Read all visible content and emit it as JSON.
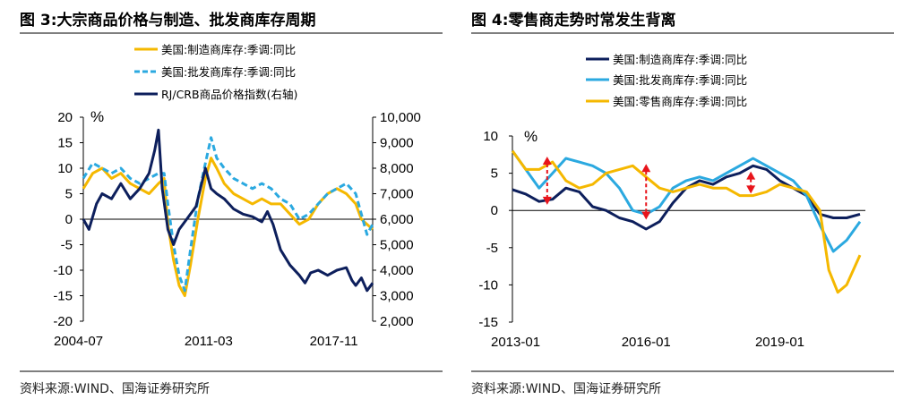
{
  "left": {
    "title": "图 3:大宗商品价格与制造、批发商库存周期",
    "source": "资料来源:WIND、国海证券研究所",
    "chart_data": {
      "type": "line",
      "unit_label": "%",
      "ylim": [
        -20,
        20
      ],
      "yticks": [
        "20",
        "15",
        "10",
        "5",
        "0",
        "-5",
        "-10",
        "-15",
        "-20"
      ],
      "y2lim": [
        2000,
        10000
      ],
      "y2ticks": [
        "10,000",
        "9,000",
        "8,000",
        "7,000",
        "6,000",
        "5,000",
        "4,000",
        "3,000",
        "2,000"
      ],
      "xlim": [
        2004.5,
        2019.9
      ],
      "xticks": [
        {
          "x": 2004.5,
          "label": "2004-07"
        },
        {
          "x": 2011.17,
          "label": "2011-03"
        },
        {
          "x": 2017.83,
          "label": "2017-11"
        }
      ],
      "legend_position": "top-left",
      "series": [
        {
          "name": "美国:制造商库存:季调:同比",
          "color": "#F5B800",
          "dash": false,
          "axis": "left",
          "x": [
            2004.5,
            2005.0,
            2005.5,
            2006.0,
            2006.5,
            2007.0,
            2007.5,
            2008.0,
            2008.5,
            2008.8,
            2009.0,
            2009.3,
            2009.6,
            2009.9,
            2010.2,
            2010.6,
            2011.0,
            2011.3,
            2011.6,
            2012.0,
            2012.5,
            2013.0,
            2013.5,
            2014.0,
            2014.5,
            2015.0,
            2015.5,
            2016.0,
            2016.5,
            2017.0,
            2017.5,
            2018.0,
            2018.5,
            2019.0,
            2019.3,
            2019.6,
            2019.9
          ],
          "y": [
            6,
            9,
            10,
            8,
            9,
            7,
            6,
            5,
            7,
            8,
            -1,
            -8,
            -13,
            -15,
            -9,
            0,
            8,
            12,
            10,
            7,
            5,
            4,
            3,
            4,
            3,
            3,
            1,
            -1,
            0,
            3,
            5,
            6,
            5,
            3,
            0,
            -1,
            -2
          ]
        },
        {
          "name": "美国:批发商库存:季调:同比",
          "color": "#2BA9E0",
          "dash": true,
          "axis": "left",
          "x": [
            2004.5,
            2005.0,
            2005.5,
            2006.0,
            2006.5,
            2007.0,
            2007.5,
            2008.0,
            2008.5,
            2008.8,
            2009.0,
            2009.3,
            2009.6,
            2009.9,
            2010.2,
            2010.6,
            2011.0,
            2011.3,
            2011.6,
            2012.0,
            2012.5,
            2013.0,
            2013.5,
            2014.0,
            2014.5,
            2015.0,
            2015.5,
            2016.0,
            2016.5,
            2017.0,
            2017.5,
            2018.0,
            2018.5,
            2019.0,
            2019.3,
            2019.6,
            2019.9
          ],
          "y": [
            8,
            11,
            10,
            9,
            10,
            8,
            7,
            8,
            9,
            9,
            3,
            -5,
            -11,
            -14,
            -6,
            4,
            11,
            16,
            12,
            10,
            8,
            7,
            6,
            7,
            6,
            4,
            3,
            0,
            1,
            3,
            5,
            6,
            7,
            5,
            1,
            -3,
            -1
          ]
        },
        {
          "name": "RJ/CRB商品价格指数(右轴)",
          "color": "#0D1F5C",
          "dash": false,
          "axis": "right",
          "x": [
            2004.5,
            2004.8,
            2005.2,
            2005.5,
            2006.0,
            2006.5,
            2007.0,
            2007.5,
            2008.0,
            2008.3,
            2008.5,
            2008.7,
            2009.0,
            2009.3,
            2009.6,
            2010.0,
            2010.5,
            2011.0,
            2011.3,
            2011.6,
            2012.0,
            2012.5,
            2013.0,
            2013.5,
            2014.0,
            2014.3,
            2014.6,
            2015.0,
            2015.5,
            2016.0,
            2016.3,
            2016.6,
            2017.0,
            2017.5,
            2018.0,
            2018.5,
            2018.8,
            2019.0,
            2019.3,
            2019.6,
            2019.9
          ],
          "y": [
            6000,
            5600,
            6600,
            7000,
            6800,
            7400,
            6800,
            7200,
            7800,
            8700,
            9500,
            7200,
            5600,
            5000,
            5600,
            6000,
            6500,
            8000,
            7200,
            7000,
            6800,
            6400,
            6200,
            6100,
            5900,
            6300,
            5800,
            4800,
            4200,
            3800,
            3500,
            3900,
            4000,
            3800,
            4000,
            4100,
            3600,
            3400,
            3700,
            3200,
            3500
          ]
        }
      ]
    }
  },
  "right": {
    "title": "图 4:零售商走势时常发生背离",
    "source": "资料来源:WIND、国海证券研究所",
    "chart_data": {
      "type": "line",
      "unit_label": "%",
      "ylim": [
        -15,
        10
      ],
      "yticks": [
        "10",
        "5",
        "0",
        "-5",
        "-10",
        "-15"
      ],
      "xlim": [
        2013.0,
        2020.92
      ],
      "xticks": [
        {
          "x": 2013.0,
          "label": "2013-01"
        },
        {
          "x": 2016.0,
          "label": "2016-01"
        },
        {
          "x": 2019.0,
          "label": "2019-01"
        }
      ],
      "legend_position": "top-left",
      "series": [
        {
          "name": "美国:制造商库存:季调:同比",
          "color": "#0D1F5C",
          "x": [
            2013.0,
            2013.3,
            2013.6,
            2013.9,
            2014.2,
            2014.5,
            2014.8,
            2015.1,
            2015.4,
            2015.7,
            2016.0,
            2016.3,
            2016.6,
            2016.9,
            2017.2,
            2017.5,
            2017.8,
            2018.1,
            2018.4,
            2018.7,
            2019.0,
            2019.3,
            2019.6,
            2019.9,
            2020.2,
            2020.5,
            2020.8
          ],
          "y": [
            2.8,
            2.2,
            1.2,
            1.5,
            3.0,
            2.5,
            0.5,
            0,
            -1,
            -1.5,
            -2.5,
            -1.5,
            1,
            3,
            4,
            3.5,
            4.5,
            5,
            6,
            5.5,
            4,
            3,
            2,
            -0.5,
            -1,
            -1,
            -0.5
          ]
        },
        {
          "name": "美国:批发商库存:季调:同比",
          "color": "#2BA9E0",
          "x": [
            2013.0,
            2013.3,
            2013.6,
            2013.9,
            2014.2,
            2014.5,
            2014.8,
            2015.1,
            2015.4,
            2015.7,
            2016.0,
            2016.3,
            2016.6,
            2016.9,
            2017.2,
            2017.5,
            2017.8,
            2018.1,
            2018.4,
            2018.7,
            2019.0,
            2019.3,
            2019.6,
            2019.9,
            2020.2,
            2020.5,
            2020.8
          ],
          "y": [
            8,
            5.5,
            3,
            5,
            7,
            6.5,
            6,
            5,
            3,
            0,
            -0.5,
            0.5,
            3,
            4,
            4.5,
            4,
            5,
            6,
            7,
            6,
            5,
            4,
            2,
            -2,
            -5.5,
            -4,
            -1.5
          ]
        },
        {
          "name": "美国:零售商库存:季调:同比",
          "color": "#F5B800",
          "x": [
            2013.0,
            2013.3,
            2013.6,
            2013.9,
            2014.2,
            2014.5,
            2014.8,
            2015.1,
            2015.4,
            2015.7,
            2016.0,
            2016.3,
            2016.6,
            2016.9,
            2017.2,
            2017.5,
            2017.8,
            2018.1,
            2018.4,
            2018.7,
            2019.0,
            2019.3,
            2019.6,
            2019.9,
            2020.1,
            2020.3,
            2020.5,
            2020.8
          ],
          "y": [
            8,
            5.5,
            5.5,
            6.5,
            4,
            3,
            3.5,
            5,
            5.5,
            6,
            4.5,
            3,
            2.5,
            3,
            3.5,
            3,
            3,
            2,
            2,
            2.5,
            3.5,
            3,
            2.5,
            0,
            -8,
            -11,
            -10,
            -6
          ]
        }
      ],
      "annotations": [
        {
          "type": "double-arrow",
          "color": "#E8141B",
          "x": 2013.78,
          "y1": 7.0,
          "y2": 1.0
        },
        {
          "type": "double-arrow",
          "color": "#E8141B",
          "x": 2016.0,
          "y1": 6.0,
          "y2": -1.0
        },
        {
          "type": "double-arrow",
          "color": "#E8141B",
          "x": 2018.35,
          "y1": 5.0,
          "y2": 2.5
        }
      ]
    }
  }
}
